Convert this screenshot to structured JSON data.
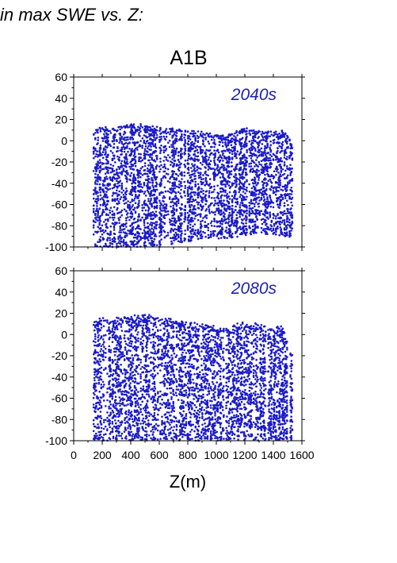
{
  "heading": "in max SWE vs. Z:",
  "scenario": "A1B",
  "colors": {
    "points": "#1a1ac8",
    "label": "#2020b4",
    "axis": "#000000"
  },
  "chart_data": [
    {
      "type": "scatter",
      "title": "A1B",
      "annotation": "2040s",
      "xlabel": "",
      "ylabel": "",
      "xlim": [
        0,
        1600
      ],
      "ylim": [
        -100,
        60
      ],
      "xticks": [
        0,
        200,
        400,
        600,
        800,
        1000,
        1200,
        1400,
        1600
      ],
      "yticks": [
        -100,
        -80,
        -60,
        -40,
        -20,
        0,
        20,
        40,
        60
      ],
      "show_x_tick_labels": false,
      "grid": false,
      "x_range_of_points": [
        140,
        1540
      ],
      "top_envelope": [
        [
          140,
          8
        ],
        [
          180,
          14
        ],
        [
          260,
          12
        ],
        [
          340,
          14
        ],
        [
          420,
          16
        ],
        [
          500,
          16
        ],
        [
          560,
          14
        ],
        [
          620,
          12
        ],
        [
          700,
          12
        ],
        [
          800,
          10
        ],
        [
          900,
          9
        ],
        [
          1000,
          8
        ],
        [
          1100,
          6
        ],
        [
          1150,
          10
        ],
        [
          1200,
          12
        ],
        [
          1300,
          10
        ],
        [
          1400,
          9
        ],
        [
          1480,
          10
        ],
        [
          1540,
          -5
        ]
      ],
      "bottom_envelope": [
        [
          140,
          -100
        ],
        [
          600,
          -100
        ],
        [
          700,
          -97
        ],
        [
          800,
          -95
        ],
        [
          900,
          -92
        ],
        [
          1000,
          -92
        ],
        [
          1100,
          -92
        ],
        [
          1200,
          -90
        ],
        [
          1300,
          -88
        ],
        [
          1400,
          -88
        ],
        [
          1540,
          -92
        ]
      ]
    },
    {
      "type": "scatter",
      "annotation": "2080s",
      "xlabel": "Z(m)",
      "ylabel": "",
      "xlim": [
        0,
        1600
      ],
      "ylim": [
        -100,
        60
      ],
      "xticks": [
        0,
        200,
        400,
        600,
        800,
        1000,
        1200,
        1400,
        1600
      ],
      "xtick_labels": [
        "0",
        "200",
        "400",
        "600",
        "800",
        "1000",
        "1200",
        "1400",
        "1600"
      ],
      "yticks": [
        -100,
        -80,
        -60,
        -40,
        -20,
        0,
        20,
        40,
        60
      ],
      "show_x_tick_labels": true,
      "grid": false,
      "x_range_of_points": [
        140,
        1540
      ],
      "top_envelope": [
        [
          140,
          14
        ],
        [
          200,
          16
        ],
        [
          300,
          16
        ],
        [
          400,
          18
        ],
        [
          480,
          20
        ],
        [
          560,
          18
        ],
        [
          640,
          16
        ],
        [
          720,
          14
        ],
        [
          800,
          12
        ],
        [
          900,
          10
        ],
        [
          1000,
          8
        ],
        [
          1100,
          5
        ],
        [
          1130,
          10
        ],
        [
          1200,
          12
        ],
        [
          1300,
          10
        ],
        [
          1400,
          5
        ],
        [
          1460,
          10
        ],
        [
          1540,
          -20
        ]
      ],
      "bottom_envelope": [
        [
          140,
          -100
        ],
        [
          1540,
          -100
        ]
      ]
    }
  ]
}
